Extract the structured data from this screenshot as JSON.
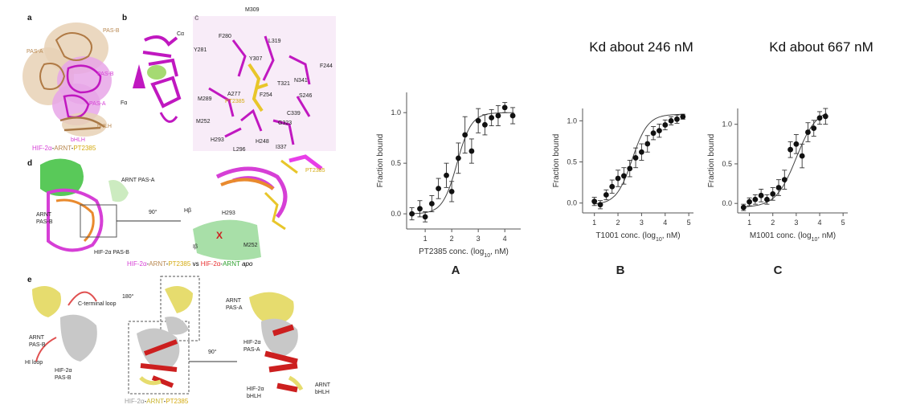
{
  "left_figure": {
    "panels": {
      "a": {
        "letter": "a",
        "labels": [
          "PAS-B",
          "PAS-A",
          "PAS-B",
          "PAS-A",
          "bHLH",
          "bHLH"
        ],
        "caption": {
          "hif": "HIF-2α",
          "sep1": "-",
          "arnt": "ARNT",
          "sep2": "-",
          "drug": "PT2385"
        }
      },
      "b": {
        "letter": "b",
        "labels": [
          "Cα",
          "Fα"
        ]
      },
      "c": {
        "letter": "c",
        "residues": [
          "M309",
          "F280",
          "L319",
          "Y281",
          "Y307",
          "F244",
          "N341",
          "T321",
          "A277",
          "F254",
          "S246",
          "M289",
          "PT2385",
          "C339",
          "M252",
          "G323",
          "H293",
          "H248",
          "I337",
          "L296"
        ]
      },
      "d": {
        "letter": "d",
        "labels": [
          "ARNT PAS-A",
          "ARNT",
          "PAS-B",
          "HIF-2α PAS-B",
          "90°",
          "Hβ",
          "H293",
          "M252",
          "Iβ",
          "PT2385",
          "X"
        ],
        "caption": {
          "p1": "HIF-2α",
          "p2": "-",
          "p3": "ARNT",
          "p4": "-",
          "p5": "PT2385",
          "p6": " vs ",
          "p7": "HIF-2α",
          "p8": "-",
          "p9": "ARNT",
          "p10": " apo"
        }
      },
      "e": {
        "letter": "e",
        "labels": [
          "C-terminal loop",
          "180°",
          "ARNT",
          "PAS-B",
          "HI loop",
          "HIF-2α",
          "PAS-B",
          "ARNT",
          "PAS-A",
          "90°",
          "HIF-2α",
          "PAS-A",
          "HIF-2α",
          "bHLH",
          "ARNT",
          "bHLH"
        ],
        "caption": {
          "p1": "HIF-2α",
          "p2": "-",
          "p3": "ARNT",
          "p4": "-",
          "p5": "PT2385"
        }
      }
    },
    "colors": {
      "hif": "#d63fd6",
      "arnt_tan": "#c9a073",
      "drug": "#e8c62a",
      "green": "#3cbf3c",
      "orange": "#e98a2e",
      "red": "#cc1f1f",
      "yellow_ribbon": "#e6dc6e",
      "grey_ribbon": "#c8c8c8",
      "salmon": "#e88080"
    }
  },
  "chart_data": [
    {
      "type": "scatter",
      "panel_letter": "A",
      "title": "",
      "xlabel_pre": "PT2385 conc. (log",
      "xlabel_sub": "10",
      "xlabel_post": ", nM)",
      "ylabel": "Fraction bound",
      "xlim": [
        0.3,
        4.6
      ],
      "ylim": [
        -0.15,
        1.2
      ],
      "xticks": [
        "1",
        "2",
        "3",
        "4"
      ],
      "xtick_values": [
        1,
        2,
        3,
        4
      ],
      "yticks": [
        "0.0",
        "0.5",
        "1.0"
      ],
      "ytick_values": [
        0,
        0.5,
        1
      ],
      "x": [
        0.5,
        0.8,
        1.0,
        1.25,
        1.5,
        1.8,
        2.0,
        2.25,
        2.5,
        2.75,
        3.0,
        3.25,
        3.5,
        3.75,
        4.0,
        4.3
      ],
      "y": [
        0.0,
        0.05,
        -0.03,
        0.1,
        0.25,
        0.38,
        0.22,
        0.55,
        0.78,
        0.62,
        0.92,
        0.88,
        0.95,
        0.97,
        1.05,
        0.97
      ],
      "err": [
        0.06,
        0.08,
        0.05,
        0.08,
        0.1,
        0.12,
        0.1,
        0.15,
        0.18,
        0.12,
        0.12,
        0.1,
        0.08,
        0.1,
        0.05,
        0.08
      ],
      "fit": {
        "ec50": 2.2,
        "slope": 1.6,
        "bottom": 0.0,
        "top": 1.0
      }
    },
    {
      "type": "scatter",
      "panel_letter": "B",
      "title": "Kd about 246 nM",
      "xlabel_pre": "T1001 conc. (log",
      "xlabel_sub": "10",
      "xlabel_post": ", nM)",
      "ylabel": "Fraction bound",
      "xlim": [
        0.5,
        5.2
      ],
      "ylim": [
        -0.12,
        1.15
      ],
      "xticks": [
        "1",
        "2",
        "3",
        "4",
        "5"
      ],
      "xtick_values": [
        1,
        2,
        3,
        4,
        5
      ],
      "yticks": [
        "0.0",
        "0.5",
        "1.0"
      ],
      "ytick_values": [
        0,
        0.5,
        1
      ],
      "x": [
        1.0,
        1.25,
        1.5,
        1.75,
        2.0,
        2.25,
        2.5,
        2.75,
        3.0,
        3.25,
        3.5,
        3.75,
        4.0,
        4.25,
        4.5,
        4.75
      ],
      "y": [
        0.02,
        -0.02,
        0.1,
        0.2,
        0.3,
        0.33,
        0.42,
        0.55,
        0.62,
        0.72,
        0.85,
        0.88,
        0.95,
        1.0,
        1.02,
        1.05
      ],
      "err": [
        0.05,
        0.05,
        0.06,
        0.08,
        0.1,
        0.1,
        0.1,
        0.12,
        0.1,
        0.1,
        0.08,
        0.08,
        0.06,
        0.05,
        0.05,
        0.03
      ],
      "fit": {
        "ec50": 2.6,
        "slope": 1.3,
        "bottom": -0.02,
        "top": 1.08
      }
    },
    {
      "type": "scatter",
      "panel_letter": "C",
      "title": "Kd about 667 nM",
      "xlabel_pre": "M1001 conc. (log",
      "xlabel_sub": "10",
      "xlabel_post": ", nM)",
      "ylabel": "Fraction bound",
      "xlim": [
        0.5,
        5.2
      ],
      "ylim": [
        -0.12,
        1.2
      ],
      "xticks": [
        "1",
        "2",
        "3",
        "4",
        "5"
      ],
      "xtick_values": [
        1,
        2,
        3,
        4,
        5
      ],
      "yticks": [
        "0.0",
        "0.5",
        "1.0"
      ],
      "ytick_values": [
        0,
        0.5,
        1
      ],
      "x": [
        0.75,
        1.0,
        1.25,
        1.5,
        1.75,
        2.0,
        2.25,
        2.5,
        2.75,
        3.0,
        3.25,
        3.5,
        3.75,
        4.0,
        4.25
      ],
      "y": [
        -0.05,
        0.02,
        0.05,
        0.1,
        0.05,
        0.12,
        0.2,
        0.3,
        0.68,
        0.75,
        0.6,
        0.9,
        0.95,
        1.08,
        1.1
      ],
      "err": [
        0.04,
        0.05,
        0.06,
        0.08,
        0.06,
        0.08,
        0.1,
        0.12,
        0.1,
        0.12,
        0.15,
        0.12,
        0.1,
        0.08,
        0.1
      ],
      "fit": {
        "ec50": 3.0,
        "slope": 1.0,
        "bottom": -0.05,
        "top": 1.2
      }
    }
  ]
}
